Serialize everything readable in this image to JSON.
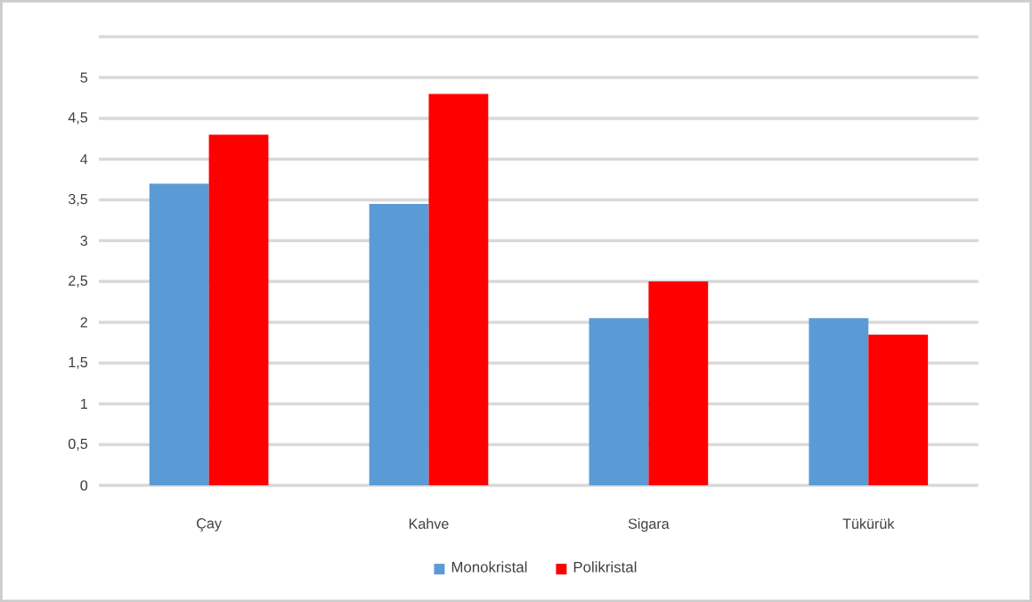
{
  "chart_data": {
    "type": "bar",
    "categories": [
      "Çay",
      "Kahve",
      "Sigara",
      "Tükürük"
    ],
    "series": [
      {
        "name": "Monokristal",
        "color": "#5b9bd5",
        "values": [
          3.7,
          3.45,
          2.05,
          2.05
        ]
      },
      {
        "name": "Polikristal",
        "color": "#ff0000",
        "values": [
          4.3,
          4.8,
          2.5,
          1.85
        ]
      }
    ],
    "ylim": [
      0,
      5.5
    ],
    "yticks": [
      {
        "value": 0,
        "label": "0"
      },
      {
        "value": 0.5,
        "label": "0,5"
      },
      {
        "value": 1,
        "label": "1"
      },
      {
        "value": 1.5,
        "label": "1,5"
      },
      {
        "value": 2,
        "label": "2"
      },
      {
        "value": 2.5,
        "label": "2,5"
      },
      {
        "value": 3,
        "label": "3"
      },
      {
        "value": 3.5,
        "label": "3,5"
      },
      {
        "value": 4,
        "label": "4"
      },
      {
        "value": 4.5,
        "label": "4,5"
      },
      {
        "value": 5,
        "label": "5"
      },
      {
        "value": 5.5,
        "label": null
      }
    ],
    "grid": "y",
    "legend": "bottom"
  }
}
